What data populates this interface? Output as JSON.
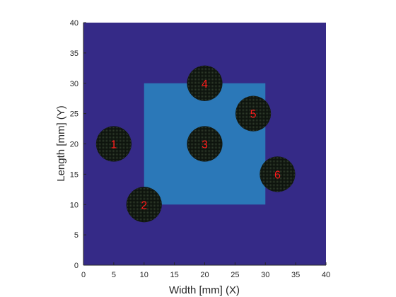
{
  "chart_data": {
    "type": "heatmap",
    "title": "",
    "xlabel": "Width [mm] (X)",
    "ylabel": "Length [mm] (Y)",
    "xlim": [
      0,
      40
    ],
    "ylim": [
      0,
      40
    ],
    "xticks": [
      0,
      5,
      10,
      15,
      20,
      25,
      30,
      35,
      40
    ],
    "yticks": [
      0,
      5,
      10,
      15,
      20,
      25,
      30,
      35,
      40
    ],
    "grid": false,
    "colors": {
      "background_region": "#352A87",
      "inner_region": "#2B78B8",
      "circle_fill": "#141A14",
      "label_color": "#FF1A1A",
      "axis_color": "#262626"
    },
    "regions": [
      {
        "x": [
          0,
          40
        ],
        "y": [
          0,
          40
        ],
        "color": "#352A87"
      },
      {
        "x": [
          10,
          30
        ],
        "y": [
          10,
          30
        ],
        "color": "#2B78B8"
      }
    ],
    "points": [
      {
        "label": "1",
        "x": 5,
        "y": 20,
        "radius": 2.9
      },
      {
        "label": "2",
        "x": 10,
        "y": 10,
        "radius": 2.9
      },
      {
        "label": "3",
        "x": 20,
        "y": 20,
        "radius": 2.9
      },
      {
        "label": "4",
        "x": 20,
        "y": 30,
        "radius": 2.9
      },
      {
        "label": "5",
        "x": 28,
        "y": 25,
        "radius": 2.9
      },
      {
        "label": "6",
        "x": 32,
        "y": 15,
        "radius": 2.9
      }
    ]
  }
}
